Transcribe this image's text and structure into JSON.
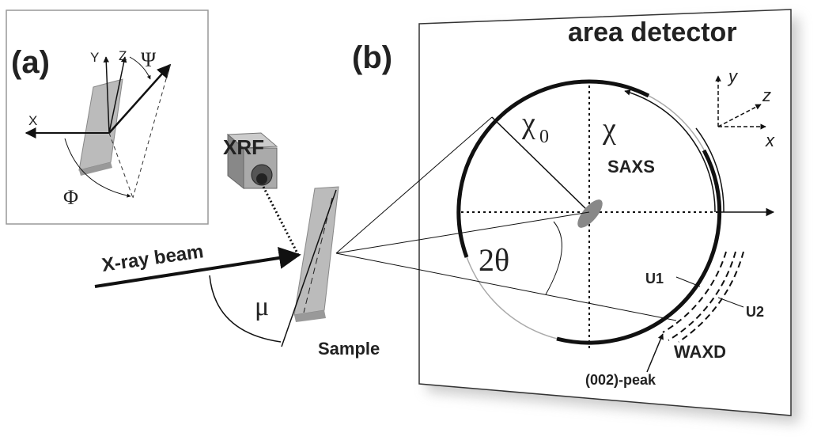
{
  "panel_a": {
    "label": "(a)",
    "axes": {
      "y": "Y",
      "z": "Z",
      "x": "X"
    },
    "angles": {
      "psi": "Ψ",
      "phi": "Φ"
    }
  },
  "source": {
    "xrf": "XRF",
    "beam": "X-ray beam",
    "mu": "μ",
    "sample": "Sample"
  },
  "panel_b": {
    "label": "(b)",
    "detector": "area detector",
    "chi0": {
      "symbol": "χ",
      "subscript": "0"
    },
    "chi": "χ",
    "saxs": "SAXS",
    "two_theta": "2θ",
    "axes": {
      "y": "y",
      "z": "z",
      "x": "x"
    },
    "u1": "U1",
    "u2": "U2",
    "waxd": "WAXD",
    "peak": "(002)-peak"
  }
}
